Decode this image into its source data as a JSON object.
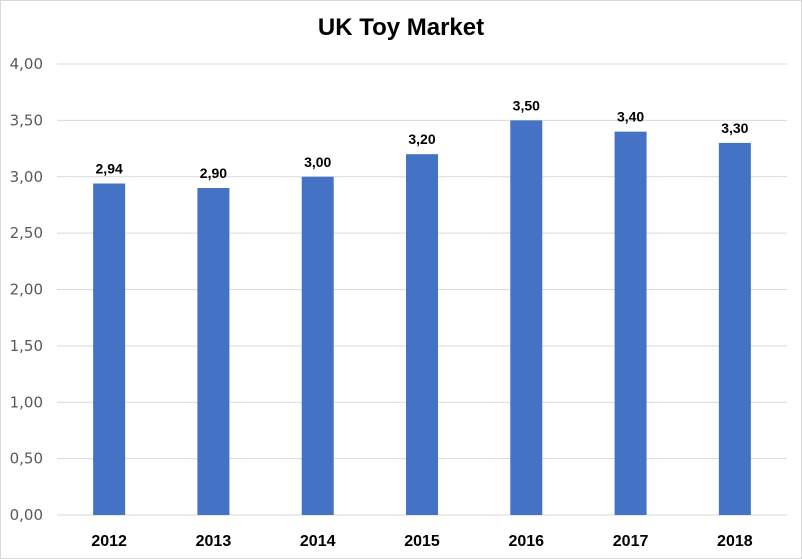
{
  "chart_data": {
    "type": "bar",
    "title": "UK Toy Market",
    "xlabel": "",
    "ylabel": "",
    "categories": [
      "2012",
      "2013",
      "2014",
      "2015",
      "2016",
      "2017",
      "2018"
    ],
    "values": [
      2.94,
      2.9,
      3.0,
      3.2,
      3.5,
      3.4,
      3.3
    ],
    "data_labels": [
      "2,94",
      "2,90",
      "3,00",
      "3,20",
      "3,50",
      "3,40",
      "3,30"
    ],
    "ylim": [
      0,
      4
    ],
    "yticks": [
      0,
      0.5,
      1,
      1.5,
      2,
      2.5,
      3,
      3.5,
      4
    ],
    "ytick_labels": [
      "0,00",
      "0,50",
      "1,00",
      "1,50",
      "2,00",
      "2,50",
      "3,00",
      "3,50",
      "4,00"
    ],
    "grid": true,
    "legend": "none",
    "bar_color": "#4472c4",
    "grid_color": "#d9d9d9"
  }
}
